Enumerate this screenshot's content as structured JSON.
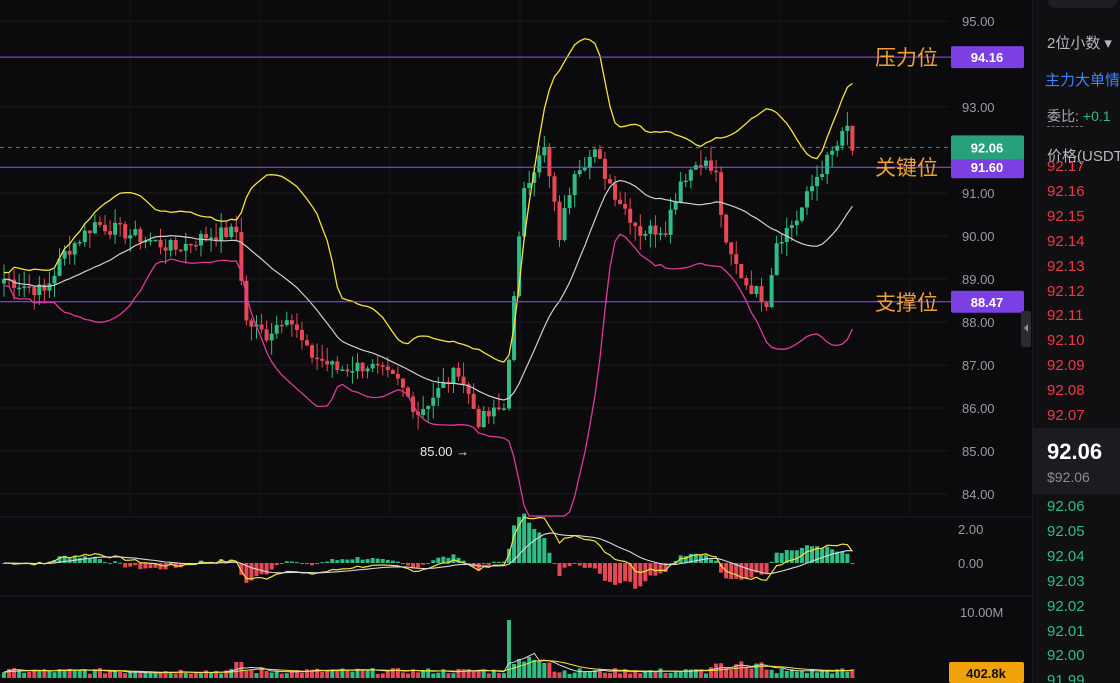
{
  "chart_data": {
    "type": "candlestick",
    "y_ticks": [
      "95.00",
      "93.00",
      "91.00",
      "90.00",
      "89.00",
      "88.00",
      "87.00",
      "86.00",
      "85.00",
      "84.00"
    ],
    "y_range": [
      83.5,
      95.5
    ],
    "levels": [
      {
        "name": "压力位",
        "price": "94.16",
        "color": "#9b4dff"
      },
      {
        "name": "关键位",
        "price": "91.60",
        "color": "#9b4dff"
      },
      {
        "name": "支撑位",
        "price": "88.47",
        "color": "#9b4dff"
      }
    ],
    "current_price": "92.06",
    "current_color": "#26a17b",
    "low_marker": "85.00",
    "up_color": "#2ebd85",
    "down_color": "#e84855",
    "macd_ticks": [
      "2.00",
      "0.00"
    ],
    "volume_ticks": [
      "10.00M"
    ],
    "volume_current": "402.8k",
    "volume_current_color": "#f0a30a",
    "series": [
      {
        "name": "Bollinger upper",
        "color": "#f5e23c"
      },
      {
        "name": "Bollinger middle",
        "color": "#cfcfcf"
      },
      {
        "name": "Bollinger lower",
        "color": "#e0379b"
      }
    ]
  },
  "side_panel": {
    "decimals": "2位小数",
    "main_order": "主力大单情",
    "ratio_label": "委比:",
    "ratio_value": "+0.1",
    "price_header": "价格(USDT",
    "asks": [
      "92.17",
      "92.16",
      "92.15",
      "92.14",
      "92.13",
      "92.12",
      "92.11",
      "92.10",
      "92.09",
      "92.08",
      "92.07"
    ],
    "last_price": "92.06",
    "last_price_usd": "$92.06",
    "bids": [
      "92.06",
      "92.05",
      "92.04",
      "92.03",
      "92.02",
      "92.01",
      "92.00",
      "91.99"
    ]
  }
}
